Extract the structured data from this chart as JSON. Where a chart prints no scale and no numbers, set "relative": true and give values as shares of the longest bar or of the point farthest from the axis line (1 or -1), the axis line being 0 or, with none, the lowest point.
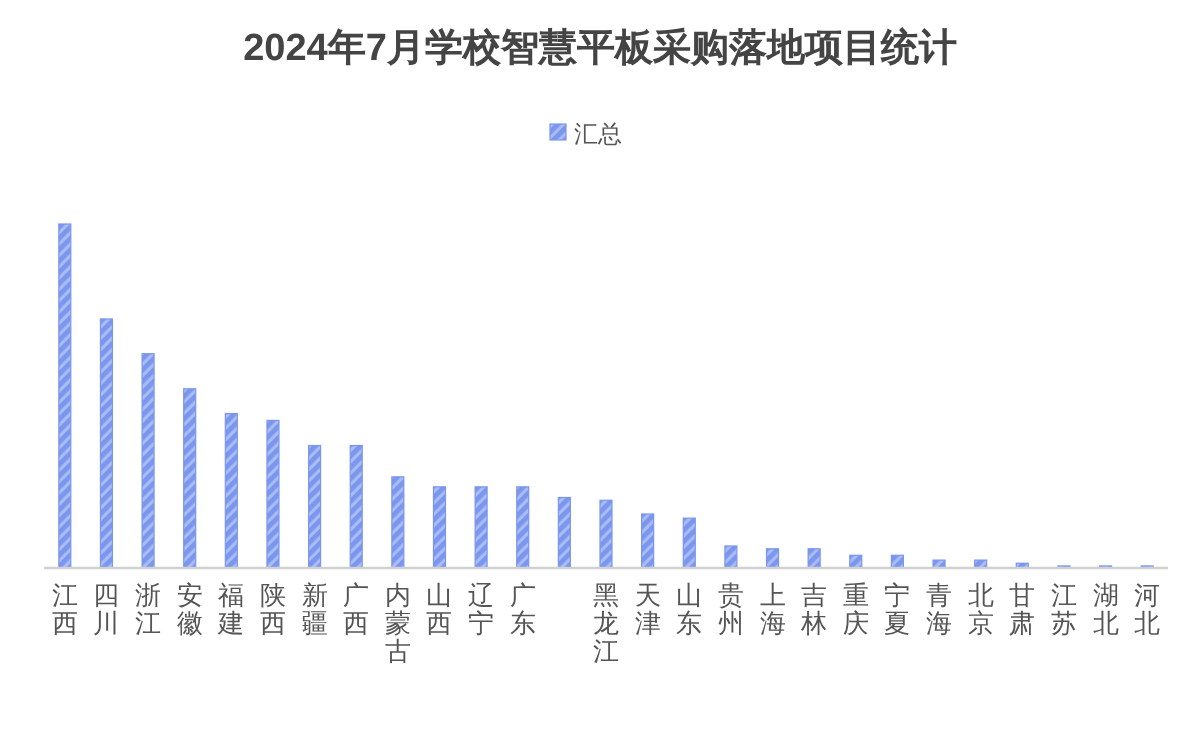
{
  "chart_data": {
    "type": "bar",
    "title": "2024年7月学校智慧平板采购落地项目统计",
    "relative": true,
    "legend": "top",
    "categories": [
      "江西",
      "四川",
      "浙江",
      "安徽",
      "福建",
      "陕西",
      "新疆",
      "广西",
      "内蒙古",
      "山西",
      "辽宁",
      "广东",
      null,
      "黑龙江",
      "天津",
      "山东",
      "贵州",
      "上海",
      "吉林",
      "重庆",
      "宁夏",
      "青海",
      "北京",
      "甘肃",
      "江苏",
      "湖北",
      "河北"
    ],
    "series": [
      {
        "name": "汇总",
        "color": "#7b96ee",
        "values": [
          1,
          0.724,
          0.623,
          0.521,
          0.449,
          0.429,
          0.356,
          0.356,
          0.265,
          0.236,
          0.236,
          0.236,
          0.205,
          0.197,
          0.157,
          0.145,
          0.064,
          0.056,
          0.056,
          0.037,
          0.037,
          0.023,
          0.023,
          0.014,
          0.006,
          0.006,
          0.006
        ]
      }
    ]
  }
}
